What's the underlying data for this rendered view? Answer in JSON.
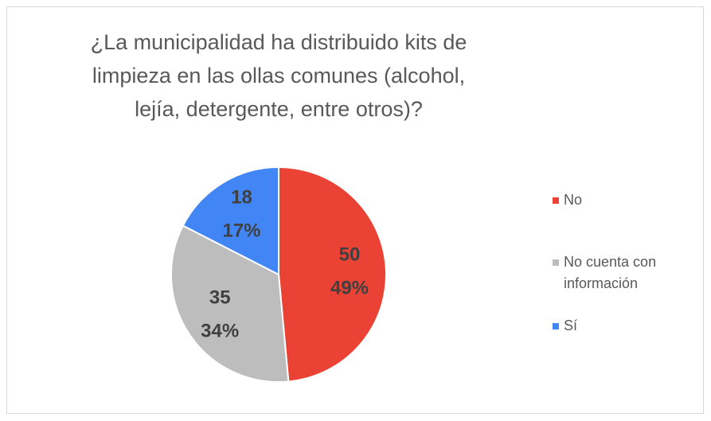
{
  "chart_data": {
    "type": "pie",
    "title": "¿La municipalidad ha distribuido kits de limpieza en las ollas comunes (alcohol, lejía, detergente, entre otros)?",
    "categories": [
      "No",
      "No cuenta con información",
      "Sí"
    ],
    "values": [
      50,
      35,
      18
    ],
    "percentages": [
      {
        "value": 49,
        "label": "49%"
      },
      {
        "value": 34,
        "label": "34%"
      },
      {
        "value": 17,
        "label": "17%"
      }
    ],
    "colors": [
      "#ea4335",
      "#bdbdbd",
      "#4285f4"
    ],
    "legend": "right"
  }
}
